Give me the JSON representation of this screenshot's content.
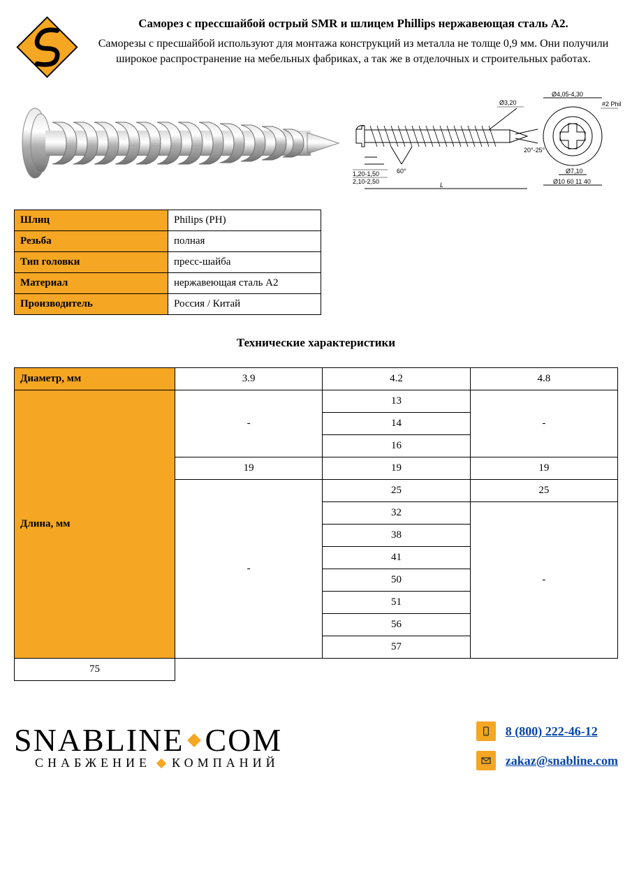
{
  "colors": {
    "accent": "#f5a623",
    "border": "#000000",
    "link": "#0645ad",
    "bg": "#ffffff"
  },
  "header": {
    "title": "Саморез с прессшайбой острый SMR и шлицем Phillips нержавеющая сталь А2.",
    "subtitle": "Саморезы с пресшайбой используют для монтажа конструкций из металла не толще 0,9 мм. Они получили широкое распространение на мебельных фабриках, а так же в отделочных и строительных работах."
  },
  "drawing": {
    "labels": {
      "d1": "Ø3,20",
      "d2": "Ø4,05-4,30",
      "d3": "Ø7,10",
      "d4": "Ø10 60 11 40",
      "phil": "#2 Phil",
      "angle1": "60°",
      "angle2": "20°-25°",
      "p1": "1,20-1,50",
      "p2": "2,10-2,50",
      "L": "L"
    }
  },
  "spec_table": {
    "rows": [
      {
        "label": "Шлиц",
        "value": "Philips (PH)"
      },
      {
        "label": "Резьба",
        "value": "полная"
      },
      {
        "label": "Тип головки",
        "value": "пресс-шайба"
      },
      {
        "label": "Материал",
        "value": "нержавеющая сталь А2"
      },
      {
        "label": "Производитель",
        "value": "Россия / Китай"
      }
    ]
  },
  "tech": {
    "title": "Технические характеристики",
    "diameter_label": "Диаметр, мм",
    "length_label": "Длина, мм",
    "diameters": [
      "3.9",
      "4.2",
      "4.8"
    ],
    "group1": {
      "col1": "-",
      "col2": [
        "13",
        "14",
        "16"
      ],
      "col3": "-"
    },
    "row19": [
      "19",
      "19",
      "19"
    ],
    "row25": {
      "col2": "25",
      "col3": "25"
    },
    "group3": {
      "col1": "-",
      "col2": [
        "32",
        "38",
        "41",
        "50",
        "51",
        "56",
        "57",
        "75"
      ],
      "col3": "-"
    }
  },
  "footer": {
    "brand1": "SNABLINE",
    "brand2": "COM",
    "tagline1": "СНАБЖЕНИЕ",
    "tagline2": "КОМПАНИЙ",
    "phone": "8 (800) 222-46-12",
    "email": "zakaz@snabline.com"
  }
}
